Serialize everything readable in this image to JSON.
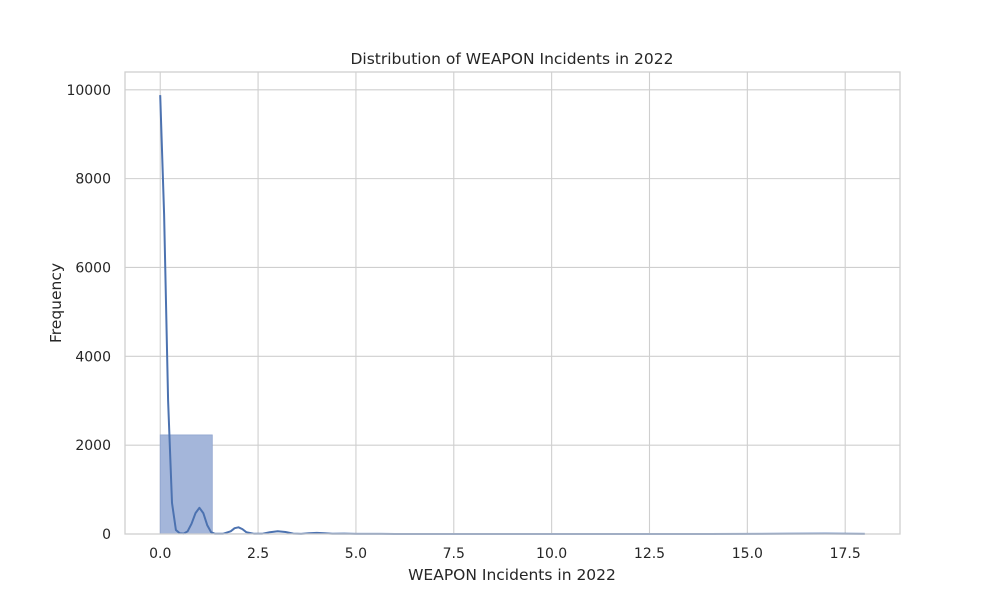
{
  "chart_data": {
    "type": "bar",
    "title": "Distribution of WEAPON Incidents in 2022",
    "xlabel": "WEAPON Incidents in 2022",
    "ylabel": "Frequency",
    "xlim": [
      -0.9,
      18.9
    ],
    "ylim": [
      0,
      10400
    ],
    "xticks": [
      0.0,
      2.5,
      5.0,
      7.5,
      10.0,
      12.5,
      15.0,
      17.5
    ],
    "xtick_labels": [
      "0.0",
      "2.5",
      "5.0",
      "7.5",
      "10.0",
      "12.5",
      "15.0",
      "17.5"
    ],
    "yticks": [
      0,
      2000,
      4000,
      6000,
      8000,
      10000
    ],
    "ytick_labels": [
      "0",
      "2000",
      "4000",
      "6000",
      "8000",
      "10000"
    ],
    "grid": true,
    "colors": {
      "bar_fill": "#a4b6da",
      "bar_edge": "#8fa4cf",
      "kde_line": "#4c72b0"
    },
    "bins": [
      {
        "x0": 0.0,
        "x1": 1.33,
        "count": 2230
      },
      {
        "x0": 1.33,
        "x1": 2.67,
        "count": 5
      },
      {
        "x0": 2.67,
        "x1": 4.0,
        "count": 3
      },
      {
        "x0": 4.0,
        "x1": 5.33,
        "count": 2
      },
      {
        "x0": 5.33,
        "x1": 6.67,
        "count": 1
      },
      {
        "x0": 6.67,
        "x1": 8.0,
        "count": 0
      },
      {
        "x0": 8.0,
        "x1": 9.33,
        "count": 0
      },
      {
        "x0": 9.33,
        "x1": 10.67,
        "count": 0
      },
      {
        "x0": 10.67,
        "x1": 12.0,
        "count": 0
      },
      {
        "x0": 12.0,
        "x1": 13.33,
        "count": 0
      },
      {
        "x0": 13.33,
        "x1": 14.67,
        "count": 0
      },
      {
        "x0": 14.67,
        "x1": 16.0,
        "count": 0
      },
      {
        "x0": 16.0,
        "x1": 17.33,
        "count": 0
      },
      {
        "x0": 17.33,
        "x1": 18.67,
        "count": 0
      }
    ],
    "kde": {
      "x": [
        0.0,
        0.1,
        0.2,
        0.3,
        0.4,
        0.5,
        0.6,
        0.7,
        0.8,
        0.9,
        1.0,
        1.1,
        1.2,
        1.3,
        1.4,
        1.6,
        1.8,
        1.9,
        2.0,
        2.1,
        2.2,
        2.4,
        2.6,
        2.8,
        3.0,
        3.2,
        3.4,
        3.6,
        3.8,
        4.0,
        4.2,
        4.4,
        4.7,
        5.0,
        5.5,
        6.0,
        7.0,
        8.0,
        10.0,
        12.0,
        14.0,
        16.0,
        17.0,
        18.0
      ],
      "y": [
        9880,
        7200,
        3000,
        700,
        90,
        15,
        10,
        60,
        230,
        470,
        590,
        470,
        200,
        40,
        5,
        5,
        60,
        130,
        150,
        110,
        40,
        5,
        5,
        40,
        60,
        45,
        10,
        3,
        18,
        25,
        15,
        4,
        8,
        3,
        2,
        1,
        0,
        0,
        0,
        0,
        0,
        5,
        8,
        3
      ]
    }
  }
}
